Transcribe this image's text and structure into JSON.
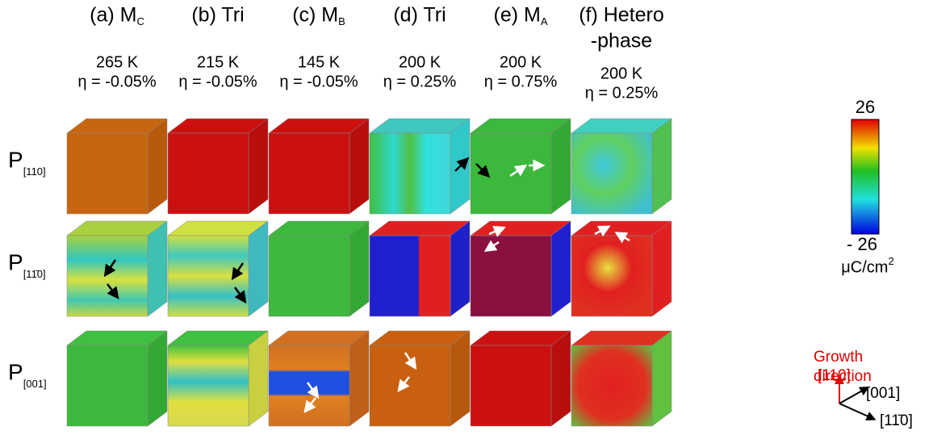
{
  "columns": [
    {
      "title": "(a) M",
      "title_sub": "C",
      "temperature": "265 K",
      "strain": "η = -0.05%"
    },
    {
      "title": "(b) Tri",
      "temperature": "215 K",
      "strain": "η = -0.05%"
    },
    {
      "title": "(c) M",
      "title_sub": "B",
      "temperature": "145 K",
      "strain": "η = -0.05%"
    },
    {
      "title": "(d) Tri",
      "temperature": "200 K",
      "strain": "η = 0.25%"
    },
    {
      "title": "(e) M",
      "title_sub": "A",
      "temperature": "200 K",
      "strain": "η = 0.75%"
    },
    {
      "title": "(f) Hetero",
      "title_cont": "-phase",
      "temperature": "200 K",
      "strain": "η = 0.25%"
    }
  ],
  "rows": [
    {
      "label": "P",
      "sub": "[110]"
    },
    {
      "label": "P",
      "sub": "[11̄0]"
    },
    {
      "label": "P",
      "sub": "[001]"
    }
  ],
  "colorbar": {
    "max": "26",
    "min": "- 26",
    "unit": "μC/cm",
    "unit_sup": "2"
  },
  "growth": {
    "label_lines": [
      "Growth",
      "direction"
    ],
    "axis_up": "[110]",
    "axis_a": "[001]",
    "axis_b": "[11̄0]"
  }
}
